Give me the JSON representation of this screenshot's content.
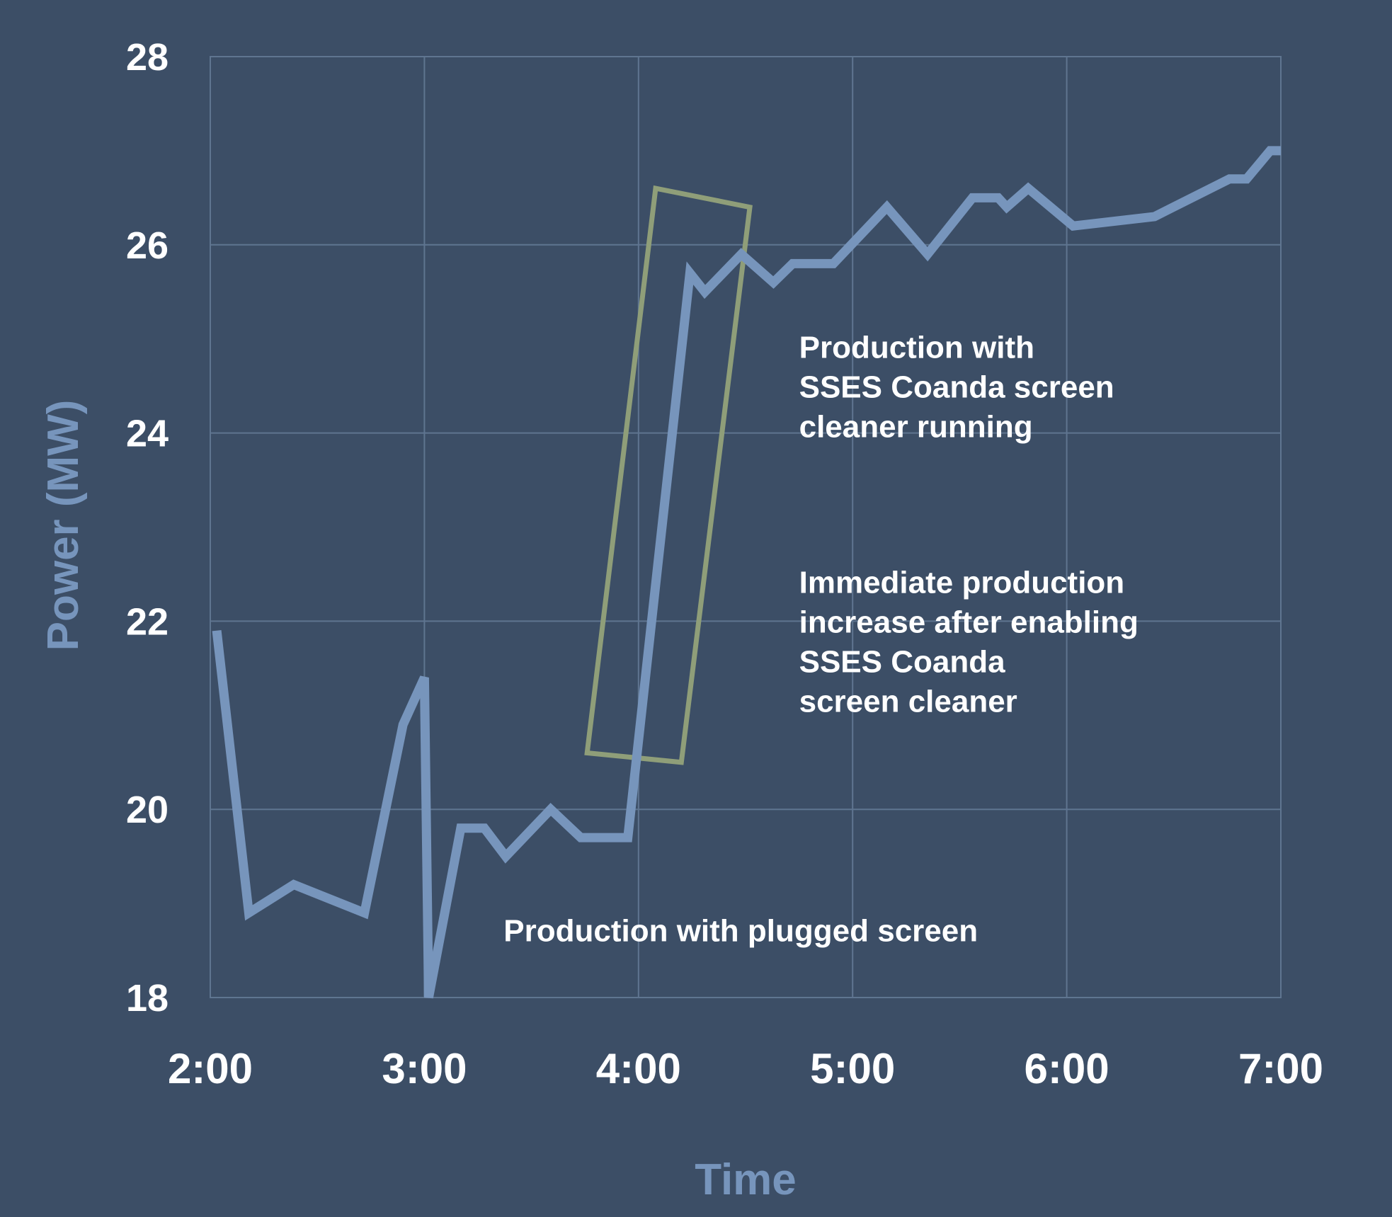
{
  "chart_data": {
    "type": "line",
    "title": "",
    "xlabel": "Time",
    "ylabel": "Power (MW)",
    "xlim": [
      2,
      7
    ],
    "ylim": [
      18,
      28
    ],
    "x_ticks": [
      {
        "value": 2,
        "label": "2:00"
      },
      {
        "value": 3,
        "label": "3:00"
      },
      {
        "value": 4,
        "label": "4:00"
      },
      {
        "value": 5,
        "label": "5:00"
      },
      {
        "value": 6,
        "label": "6:00"
      },
      {
        "value": 7,
        "label": "7:00"
      }
    ],
    "y_ticks": [
      {
        "value": 18,
        "label": "18"
      },
      {
        "value": 20,
        "label": "20"
      },
      {
        "value": 22,
        "label": "22"
      },
      {
        "value": 24,
        "label": "24"
      },
      {
        "value": 26,
        "label": "26"
      },
      {
        "value": 28,
        "label": "28"
      }
    ],
    "grid": true,
    "series": [
      {
        "name": "Power",
        "color": "#7795bc",
        "points": [
          [
            2.03,
            21.9
          ],
          [
            2.18,
            18.9
          ],
          [
            2.39,
            19.2
          ],
          [
            2.72,
            18.9
          ],
          [
            2.9,
            20.9
          ],
          [
            3.0,
            21.4
          ],
          [
            3.02,
            18.0
          ],
          [
            3.17,
            19.8
          ],
          [
            3.28,
            19.8
          ],
          [
            3.38,
            19.5
          ],
          [
            3.59,
            20.0
          ],
          [
            3.73,
            19.7
          ],
          [
            3.95,
            19.7
          ],
          [
            4.24,
            25.7
          ],
          [
            4.31,
            25.5
          ],
          [
            4.48,
            25.9
          ],
          [
            4.63,
            25.6
          ],
          [
            4.72,
            25.8
          ],
          [
            4.91,
            25.8
          ],
          [
            5.16,
            26.4
          ],
          [
            5.35,
            25.9
          ],
          [
            5.56,
            26.5
          ],
          [
            5.68,
            26.5
          ],
          [
            5.72,
            26.4
          ],
          [
            5.82,
            26.6
          ],
          [
            6.03,
            26.2
          ],
          [
            6.41,
            26.3
          ],
          [
            6.76,
            26.7
          ],
          [
            6.84,
            26.7
          ],
          [
            6.95,
            27.0
          ],
          [
            7.0,
            27.0
          ]
        ]
      }
    ],
    "highlight_box": {
      "color": "#8f9e79",
      "corners": [
        [
          4.08,
          26.6
        ],
        [
          4.52,
          26.4
        ],
        [
          4.2,
          20.5
        ],
        [
          3.76,
          20.6
        ]
      ]
    },
    "annotations": [
      {
        "name": "annotation-running",
        "lines": [
          "Production with",
          "SSES Coanda screen",
          "cleaner running"
        ],
        "x": 4.75,
        "y": 24.8
      },
      {
        "name": "annotation-increase",
        "lines": [
          "Immediate production",
          "increase after enabling",
          "SSES Coanda",
          "screen cleaner"
        ],
        "x": 4.75,
        "y": 22.3
      },
      {
        "name": "annotation-plugged",
        "lines": [
          "Production with plugged screen"
        ],
        "x": 3.37,
        "y": 18.6
      }
    ],
    "colors": {
      "background": "#3c4e66",
      "grid": "#5f7590",
      "axis_title": "#7795bc",
      "text": "#ffffff"
    }
  }
}
